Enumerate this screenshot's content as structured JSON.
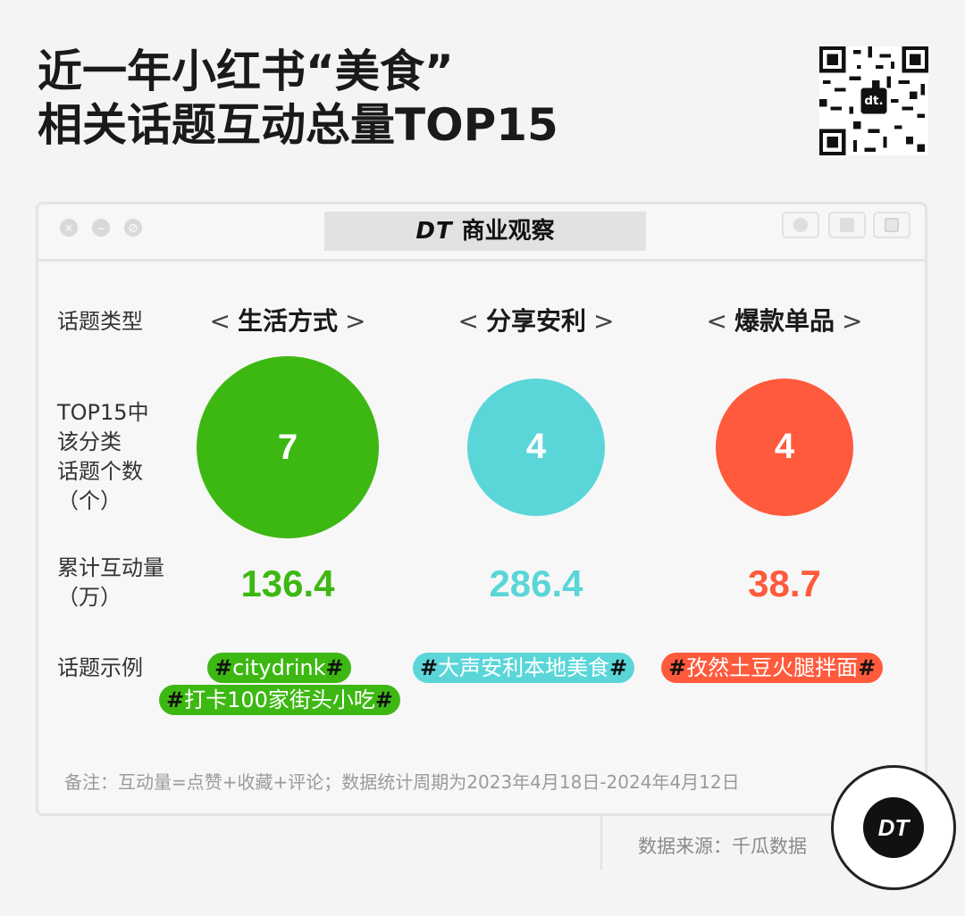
{
  "title": {
    "line1": "近一年小红书“美食”",
    "line2": "相关话题互动总量TOP15"
  },
  "brand": {
    "logo": "DT",
    "name": "商业观察"
  },
  "window_controls": [
    "close-icon",
    "minimize-icon",
    "maximize-icon"
  ],
  "row_labels": {
    "category": "话题类型",
    "count_l1": "TOP15中",
    "count_l2": "该分类",
    "count_l3": "话题个数",
    "count_l4": "（个）",
    "total_l1": "累计互动量",
    "total_l2": "（万）",
    "example": "话题示例"
  },
  "chart_data": {
    "type": "bubble",
    "categories": [
      "生活方式",
      "分享安利",
      "爆款单品"
    ],
    "series": [
      {
        "name": "TOP15中该分类话题个数（个）",
        "values": [
          7,
          4,
          4
        ]
      },
      {
        "name": "累计互动量（万）",
        "values": [
          136.4,
          286.4,
          38.7
        ]
      }
    ],
    "colors": [
      "#3db813",
      "#5ad6d9",
      "#ff5a3c"
    ],
    "examples": [
      [
        "citydrink",
        "打卡100家街头小吃"
      ],
      [
        "大声安利本地美食"
      ],
      [
        "孜然土豆火腿拌面"
      ]
    ]
  },
  "bracket_left": "<",
  "bracket_right": ">",
  "hash": "#",
  "note": "备注：互动量=点赞+收藏+评论；数据统计周期为2023年4月18日-2024年4月12日",
  "source": "数据来源：千瓜数据",
  "badge": "DT"
}
